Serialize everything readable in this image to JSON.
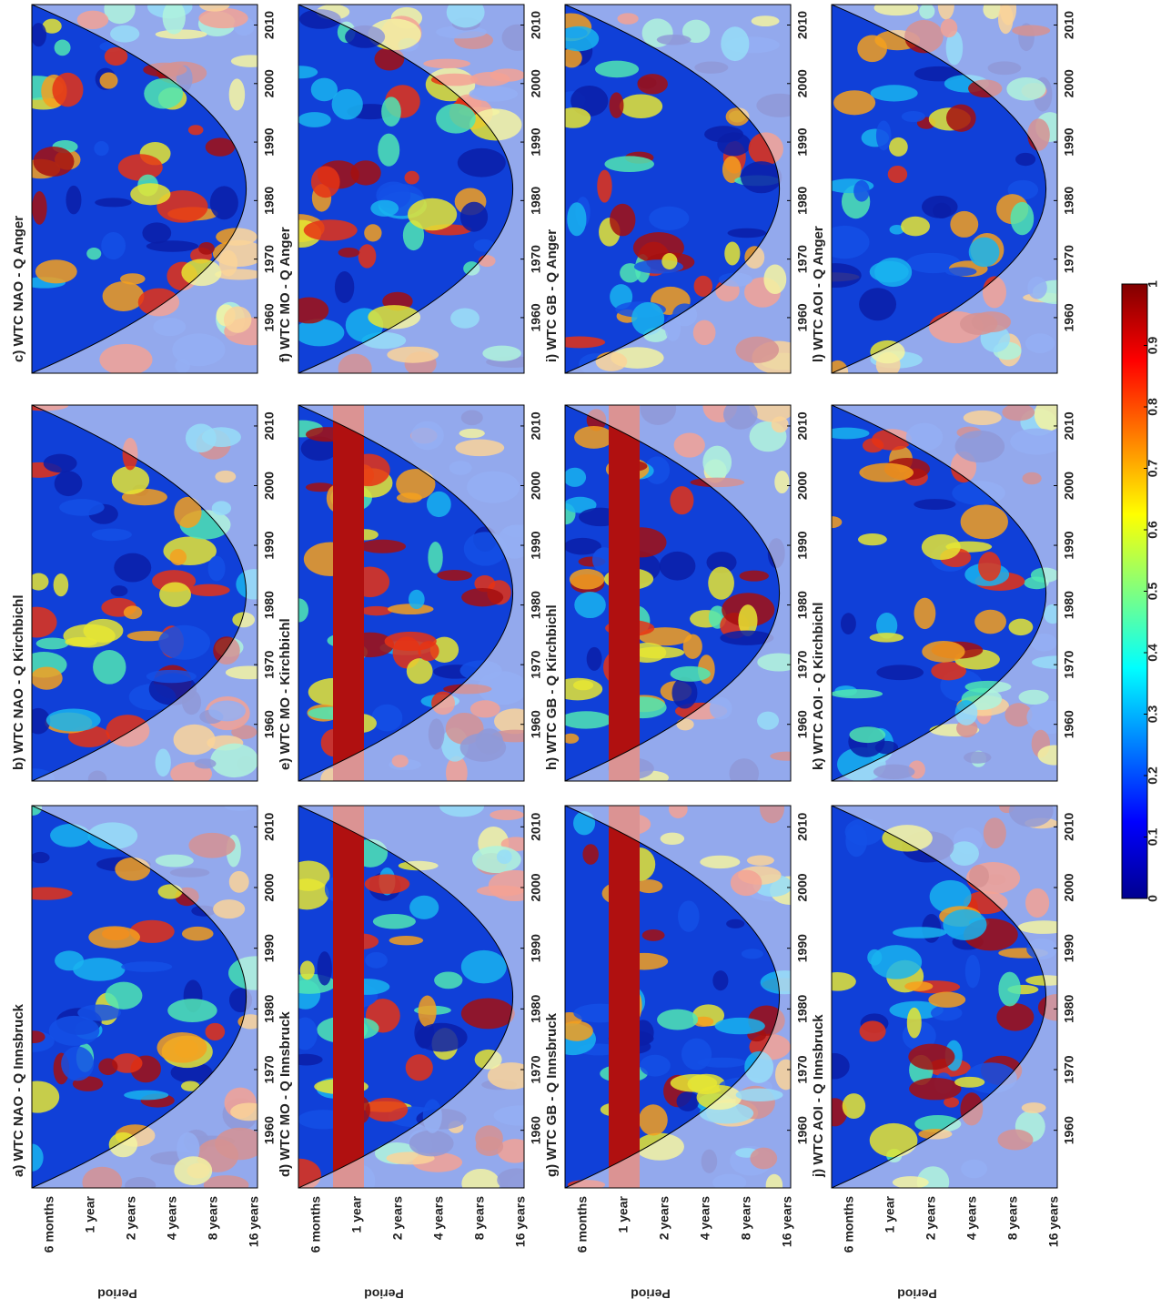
{
  "figure": {
    "panels": [
      {
        "title": "a) WTC NAO - Q Innsbruck"
      },
      {
        "title": "b) WTC NAO - Q Kirchbichl"
      },
      {
        "title": "c) WTC NAO - Q Anger"
      },
      {
        "title": "d) WTC MO - Q Innsbruck"
      },
      {
        "title": "e) WTC MO - Kirchbichl"
      },
      {
        "title": "f) WTC MO - Q Anger"
      },
      {
        "title": "g) WTC GB - Q Innsbruck"
      },
      {
        "title": "h) WTC GB - Q Kirchbichl"
      },
      {
        "title": "i) WTC GB - Q Anger"
      },
      {
        "title": "j) WTC AOI - Q Innsbruck"
      },
      {
        "title": "k) WTC AOI - Q Kirchbichl"
      },
      {
        "title": "l) WTC AOI - Q Anger"
      }
    ],
    "period_label": "Period",
    "period_ticks": [
      "6 months",
      "1 year",
      "2 years",
      "4 years",
      "8 years",
      "16 years"
    ],
    "year_ticks": [
      1960,
      1970,
      1980,
      1990,
      2000,
      2010
    ],
    "colorbar_ticks": [
      0,
      0.1,
      0.2,
      0.3,
      0.4,
      0.5,
      0.6,
      0.7,
      0.8,
      0.9,
      1
    ]
  }
}
